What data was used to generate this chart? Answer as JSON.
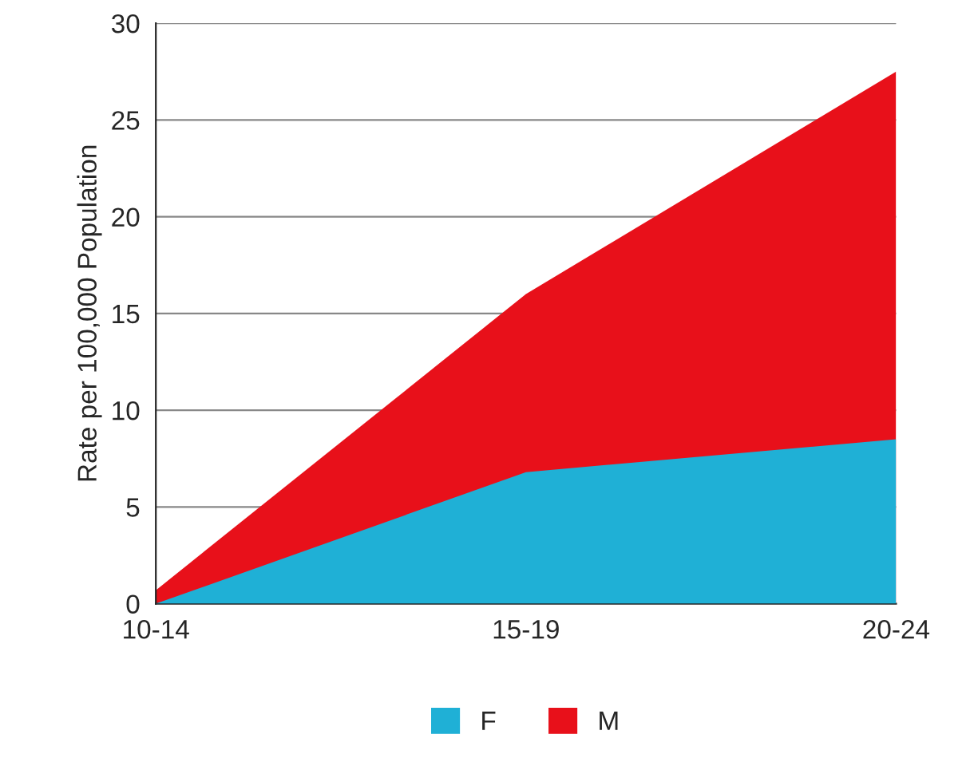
{
  "chart_data": {
    "type": "area",
    "ylabel": "Rate per 100,000 Population",
    "categories": [
      "10-14",
      "15-19",
      "20-24"
    ],
    "series": [
      {
        "name": "F",
        "color": "#1fb0d6",
        "values": [
          0,
          6.8,
          8.5
        ]
      },
      {
        "name": "M",
        "color": "#e8101a",
        "values": [
          0.7,
          16,
          27.5
        ]
      }
    ],
    "ylim": [
      0,
      30
    ],
    "yticks": [
      0,
      5,
      10,
      15,
      20,
      25,
      30
    ],
    "grid": "y",
    "legend": "bottom"
  }
}
